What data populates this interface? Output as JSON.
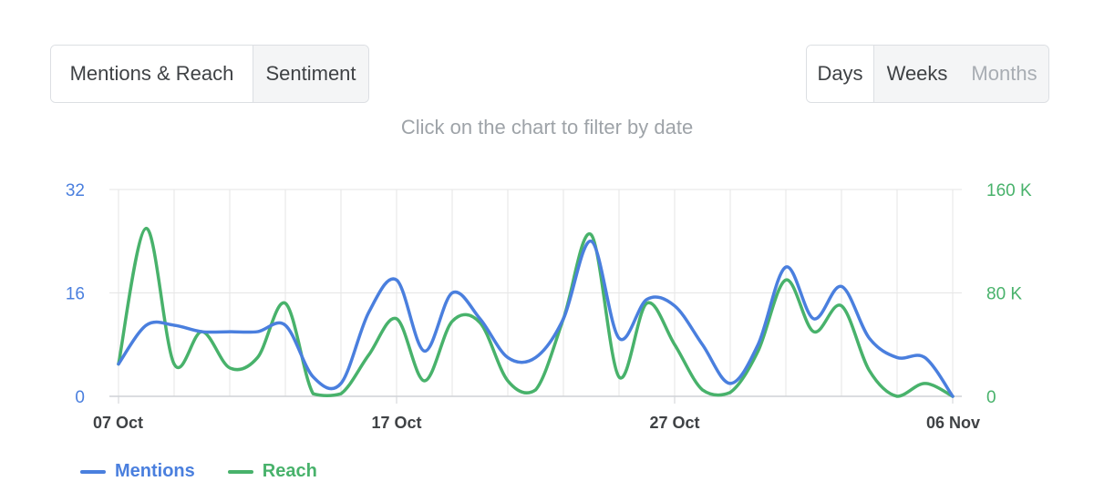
{
  "tabs": {
    "left": [
      {
        "label": "Mentions & Reach",
        "active": true
      },
      {
        "label": "Sentiment",
        "active": false
      }
    ],
    "right": [
      {
        "label": "Days",
        "active": true
      },
      {
        "label": "Weeks",
        "active": false
      },
      {
        "label": "Months",
        "active": false,
        "disabled": true
      }
    ]
  },
  "hint": "Click on the chart to filter by date",
  "colors": {
    "mentions": "#4a7fde",
    "reach": "#48b26b",
    "grid": "#e6e6e6",
    "axis": "#cfd2d6"
  },
  "chart_data": {
    "type": "line",
    "x_tick_labels": [
      "07 Oct",
      "17 Oct",
      "27 Oct",
      "06 Nov"
    ],
    "x_range_days": 30,
    "y_left": {
      "ticks": [
        "0",
        "16",
        "32"
      ],
      "range": [
        0,
        32
      ]
    },
    "y_right": {
      "ticks": [
        "0",
        "80 K",
        "160 K"
      ],
      "range": [
        0,
        160000
      ]
    },
    "grid": true,
    "legend_position": "bottom-left",
    "series": [
      {
        "name": "Mentions",
        "axis": "left",
        "values": [
          5,
          11,
          11,
          10,
          10,
          10,
          11,
          3,
          2,
          13,
          18,
          7,
          16,
          12,
          6,
          6,
          12,
          24,
          9,
          15,
          14,
          8,
          2,
          8,
          20,
          12,
          17,
          9,
          6,
          6,
          0
        ]
      },
      {
        "name": "Reach",
        "axis": "right",
        "values": [
          25000,
          130000,
          25000,
          50000,
          22000,
          30000,
          72000,
          2000,
          2000,
          32000,
          60000,
          12000,
          58000,
          57000,
          12000,
          5000,
          60000,
          125000,
          15000,
          72000,
          40000,
          5000,
          3000,
          35000,
          90000,
          50000,
          70000,
          20000,
          0,
          10000,
          0
        ]
      }
    ]
  }
}
